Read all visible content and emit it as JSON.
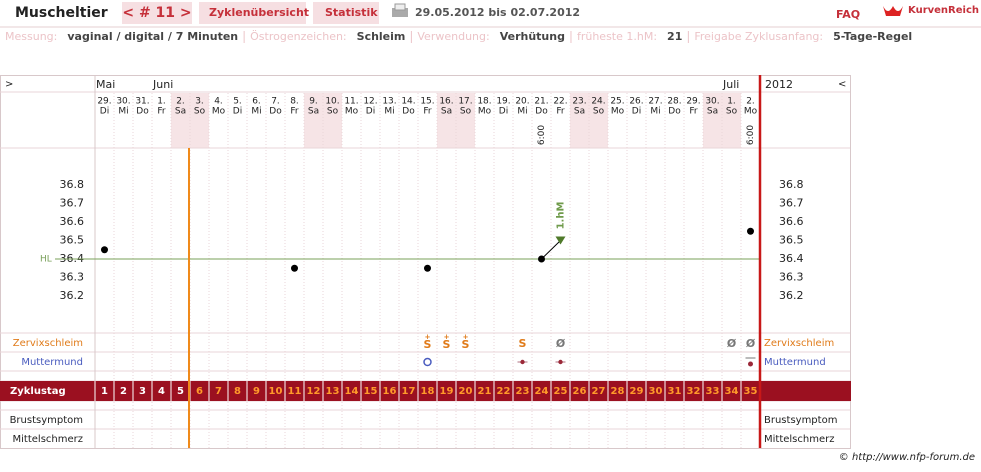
{
  "header": {
    "title": "Muscheltier",
    "cycle_nav": "< # 11 >",
    "tabs": [
      "Zyklenübersicht",
      "Statistik"
    ],
    "period": "29.05.2012 bis 02.07.2012",
    "faq": "FAQ",
    "logo": "KurvenReich"
  },
  "info": [
    {
      "label": "Messung:",
      "value": "vaginal / digital / 7 Minuten"
    },
    {
      "label": "Östrogenzeichen:",
      "value": "Schleim"
    },
    {
      "label": "Verwendung:",
      "value": "Verhütung"
    },
    {
      "label": "früheste 1.hM:",
      "value": 21
    },
    {
      "label": "Freigabe Zyklusanfang:",
      "value": "5-Tage-Regel"
    }
  ],
  "chart": {
    "nav_left": ">",
    "nav_right": "<",
    "year": "2012",
    "months": [
      "Mai",
      null,
      null,
      "Juni",
      null,
      null,
      null,
      null,
      null,
      null,
      null,
      null,
      null,
      null,
      null,
      null,
      null,
      null,
      null,
      null,
      null,
      null,
      null,
      null,
      null,
      null,
      null,
      null,
      null,
      null,
      null,
      null,
      null,
      "Juli",
      null
    ],
    "dates": [
      "29.",
      "30.",
      "31.",
      "1.",
      "2.",
      "3.",
      "4.",
      "5.",
      "6.",
      "7.",
      "8.",
      "9.",
      "10.",
      "11.",
      "12.",
      "13.",
      "14.",
      "15.",
      "16.",
      "17.",
      "18.",
      "19.",
      "20.",
      "21.",
      "22.",
      "23.",
      "24.",
      "25.",
      "26.",
      "27.",
      "28.",
      "29.",
      "30.",
      "1.",
      "2."
    ],
    "weekdays": [
      "Di",
      "Mi",
      "Do",
      "Fr",
      "Sa",
      "So",
      "Mo",
      "Di",
      "Mi",
      "Do",
      "Fr",
      "Sa",
      "So",
      "Mo",
      "Di",
      "Mi",
      "Do",
      "Fr",
      "Sa",
      "So",
      "Mo",
      "Di",
      "Mi",
      "Do",
      "Fr",
      "Sa",
      "So",
      "Mo",
      "Di",
      "Mi",
      "Do",
      "Fr",
      "Sa",
      "So",
      "Mo"
    ],
    "times": [
      null,
      null,
      null,
      null,
      null,
      null,
      null,
      null,
      null,
      null,
      null,
      null,
      null,
      null,
      null,
      null,
      null,
      null,
      null,
      null,
      null,
      null,
      null,
      "6:00",
      null,
      null,
      null,
      null,
      null,
      null,
      null,
      null,
      null,
      null,
      "6:00"
    ],
    "temperatures": [
      36.45,
      null,
      null,
      null,
      null,
      null,
      null,
      null,
      null,
      null,
      36.35,
      null,
      null,
      null,
      null,
      null,
      null,
      36.35,
      null,
      null,
      null,
      null,
      null,
      36.4,
      36.5,
      null,
      null,
      null,
      null,
      null,
      null,
      null,
      null,
      null,
      36.55
    ],
    "markers": [
      null,
      null,
      null,
      null,
      null,
      null,
      null,
      null,
      null,
      null,
      null,
      null,
      null,
      null,
      null,
      null,
      null,
      null,
      null,
      null,
      null,
      null,
      null,
      null,
      "1.hM",
      null,
      null,
      null,
      null,
      null,
      null,
      null,
      null,
      null,
      null
    ],
    "ylim": [
      36.0,
      37.0
    ],
    "yticks": [
      36.2,
      36.3,
      36.4,
      36.5,
      36.6,
      36.7,
      36.8
    ],
    "hl": 36.4,
    "hl_label": "HL",
    "cervical_mucus": [
      null,
      null,
      null,
      null,
      null,
      null,
      null,
      null,
      null,
      null,
      null,
      null,
      null,
      null,
      null,
      null,
      null,
      {
        "letter": "S",
        "sign": "+"
      },
      {
        "letter": "S",
        "sign": "+"
      },
      {
        "letter": "S",
        "sign": "+"
      },
      null,
      null,
      "S",
      null,
      "Ø",
      null,
      null,
      null,
      null,
      null,
      null,
      null,
      null,
      "Ø",
      "Ø"
    ],
    "row_labels": {
      "mucus": "Zervixschleim",
      "cervix": "Muttermund",
      "cycle_day": "Zyklustag",
      "breast": "Brustsymptom",
      "pain": "Mittelschmerz"
    },
    "cycle_days": [
      1,
      2,
      3,
      4,
      5,
      6,
      7,
      8,
      9,
      10,
      11,
      12,
      13,
      14,
      15,
      16,
      17,
      18,
      19,
      20,
      21,
      22,
      23,
      24,
      25,
      26,
      27,
      28,
      29,
      30,
      31,
      32,
      33,
      34,
      35
    ]
  },
  "footer": "© http://www.nfp-forum.de"
}
